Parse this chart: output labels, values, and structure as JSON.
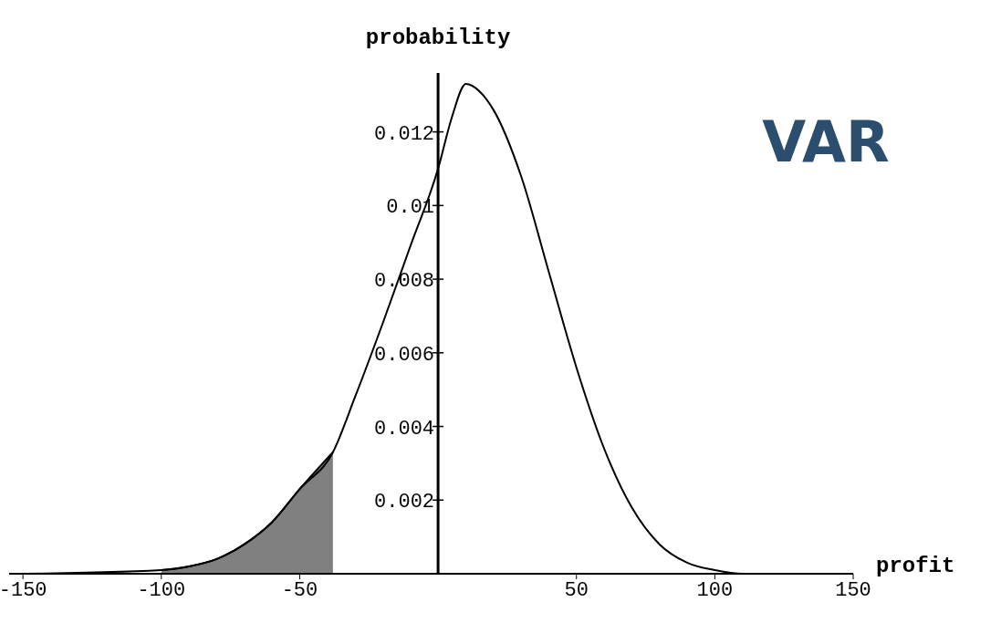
{
  "chart_data": {
    "type": "line",
    "xlabel": "profit",
    "ylabel": "probability",
    "annotations": [
      "VAR"
    ],
    "x": [
      -150,
      -100,
      -90,
      -80,
      -70,
      -60,
      -50,
      -38,
      -30,
      -20,
      -10,
      0,
      5,
      10,
      15,
      20,
      30,
      40,
      50,
      60,
      70,
      80,
      90,
      100,
      110,
      150
    ],
    "series": [
      {
        "type": "area",
        "color": "#808080",
        "values": [
          null,
          0.0001,
          0.0002,
          0.0004,
          0.0008,
          0.0014,
          0.0023,
          0.0033,
          null,
          null,
          null,
          null,
          null,
          null,
          null,
          null,
          null,
          null,
          null,
          null,
          null,
          null,
          null,
          null,
          null,
          null
        ]
      },
      {
        "color": "#000000",
        "values": [
          0,
          0.0001,
          0.0002,
          0.0004,
          0.0008,
          0.0014,
          0.0023,
          0.0033,
          0.0048,
          0.0068,
          0.0089,
          0.011,
          0.0124,
          0.0133,
          0.0131,
          0.0126,
          0.0108,
          0.0082,
          0.0056,
          0.0034,
          0.0018,
          0.0008,
          0.0003,
          0.0001,
          0,
          0
        ]
      }
    ],
    "xlim": [
      -155,
      150
    ],
    "xticks": [
      -150,
      -100,
      -50,
      50,
      100,
      150
    ],
    "ylim": [
      0,
      0.0136
    ],
    "yticks": [
      0.002,
      0.004,
      0.006,
      0.008,
      0.01,
      0.012
    ],
    "marker": "none",
    "line_style": "solid"
  }
}
